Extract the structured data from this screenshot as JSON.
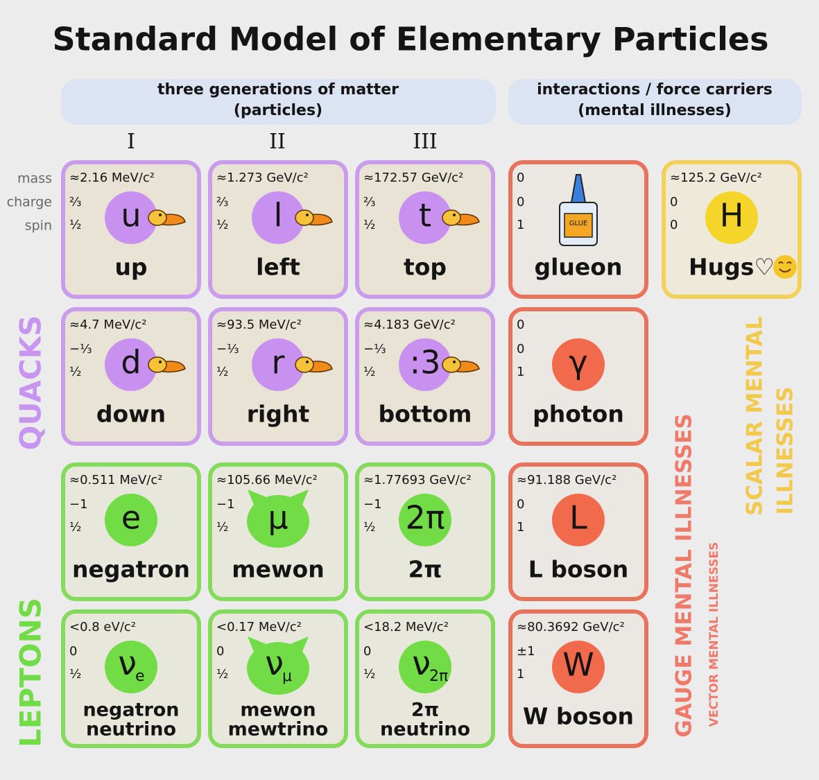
{
  "title": "Standard Model of Elementary Particles",
  "groups": [
    {
      "line1": "three generations of matter",
      "line2": "(particles)"
    },
    {
      "line1": "interactions / force carriers",
      "line2": "(mental illnesses)"
    }
  ],
  "generations": [
    "I",
    "II",
    "III"
  ],
  "property_labels": [
    "mass",
    "charge",
    "spin"
  ],
  "side_labels": {
    "quacks": "QUACKS",
    "leptons": "LEPTONS",
    "gauge": "GAUGE MENTAL ILLNESSES",
    "vector": "VECTOR MENTAL ILLNESSES",
    "scalar_line1": "SCALAR MENTAL",
    "scalar_line2": "ILLNESSES"
  },
  "quarks": [
    {
      "mass": "≈2.16 MeV/c²",
      "charge": "⅔",
      "spin": "½",
      "symbol": "u",
      "name": [
        "up"
      ]
    },
    {
      "mass": "≈1.273 GeV/c²",
      "charge": "⅔",
      "spin": "½",
      "symbol": "l",
      "name": [
        "left"
      ]
    },
    {
      "mass": "≈172.57 GeV/c²",
      "charge": "⅔",
      "spin": "½",
      "symbol": "t",
      "name": [
        "top"
      ]
    },
    {
      "mass": "≈4.7 MeV/c²",
      "charge": "−⅓",
      "spin": "½",
      "symbol": "d",
      "name": [
        "down"
      ]
    },
    {
      "mass": "≈93.5 MeV/c²",
      "charge": "−⅓",
      "spin": "½",
      "symbol": "r",
      "name": [
        "right"
      ]
    },
    {
      "mass": "≈4.183 GeV/c²",
      "charge": "−⅓",
      "spin": "½",
      "symbol": ":3",
      "name": [
        "bottom"
      ]
    }
  ],
  "leptons": [
    {
      "mass": "≈0.511 MeV/c²",
      "charge": "−1",
      "spin": "½",
      "symbol": "e",
      "name": [
        "negatron"
      ]
    },
    {
      "mass": "≈105.66 MeV/c²",
      "charge": "−1",
      "spin": "½",
      "symbol": "μ",
      "name": [
        "mewon"
      ]
    },
    {
      "mass": "≈1.77693 GeV/c²",
      "charge": "−1",
      "spin": "½",
      "symbol": "2π",
      "name": [
        "2π"
      ]
    },
    {
      "mass": "<0.8 eV/c²",
      "charge": "0",
      "spin": "½",
      "symbol": "ν",
      "symbol_sub": "e",
      "name": [
        "negatron",
        "neutrino"
      ]
    },
    {
      "mass": "<0.17 MeV/c²",
      "charge": "0",
      "spin": "½",
      "symbol": "ν",
      "symbol_sub": "μ",
      "name": [
        "mewon",
        "mewtrino"
      ]
    },
    {
      "mass": "<18.2 MeV/c²",
      "charge": "0",
      "spin": "½",
      "symbol": "ν",
      "symbol_sub": "2π",
      "name": [
        "2π",
        "neutrino"
      ]
    }
  ],
  "gauge_bosons": [
    {
      "mass": "0",
      "charge": "0",
      "spin": "1",
      "icon_text": "GLUE",
      "name": [
        "glueon"
      ]
    },
    {
      "mass": "0",
      "charge": "0",
      "spin": "1",
      "symbol": "γ",
      "name": [
        "photon"
      ]
    },
    {
      "mass": "≈91.188 GeV/c²",
      "charge": "0",
      "spin": "1",
      "symbol": "L",
      "name": [
        "L boson"
      ]
    },
    {
      "mass": "≈80.3692 GeV/c²",
      "charge": "±1",
      "spin": "1",
      "symbol": "W",
      "name": [
        "W boson"
      ]
    }
  ],
  "scalar_bosons": [
    {
      "mass": "≈125.2 GeV/c²",
      "charge": "0",
      "spin": "0",
      "symbol": "H",
      "name": [
        "Hugs♡"
      ]
    }
  ]
}
